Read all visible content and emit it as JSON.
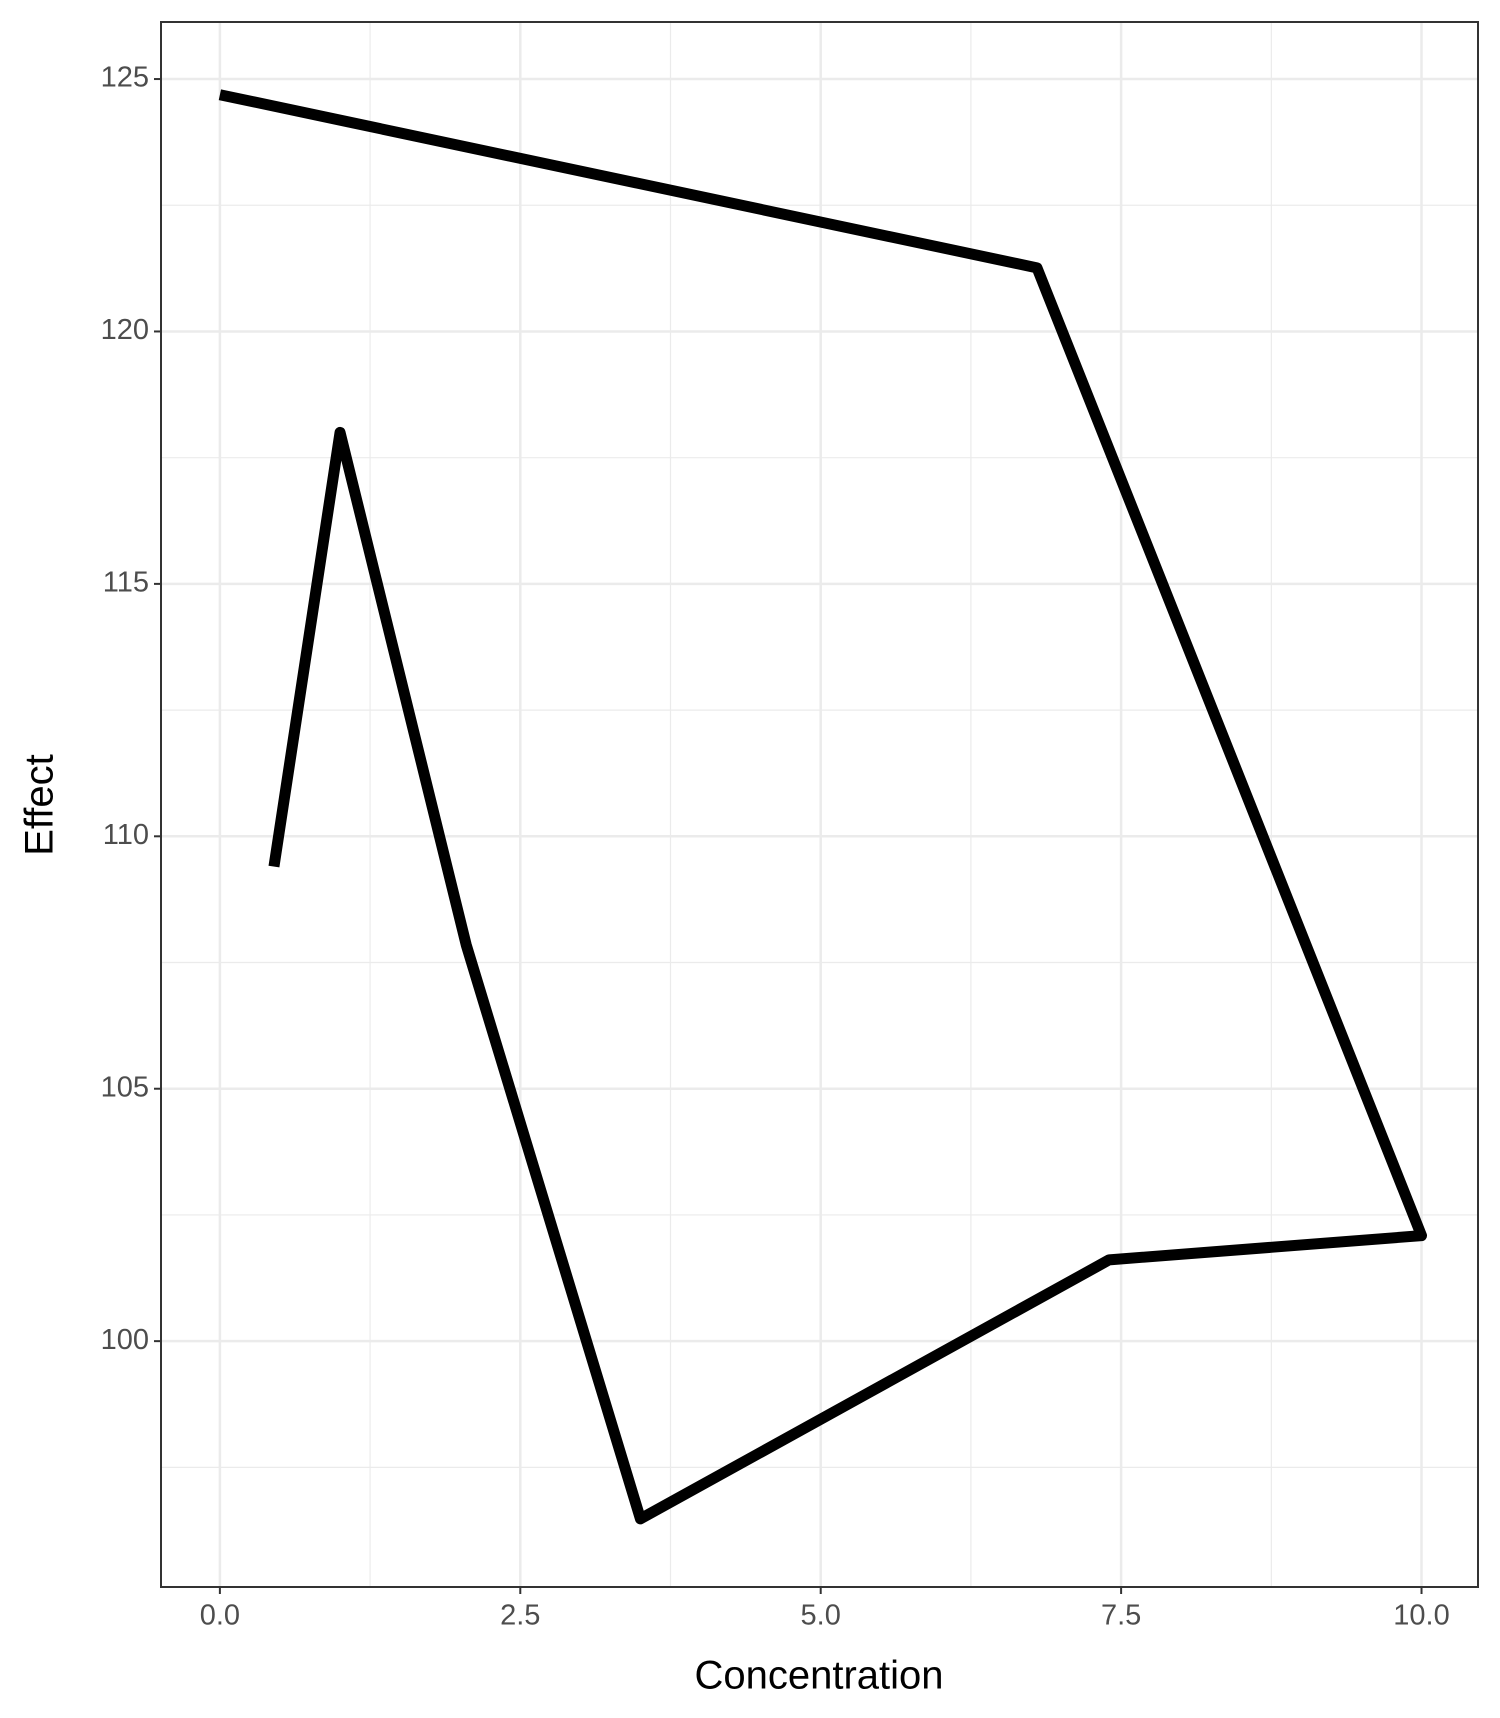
{
  "chart_data": {
    "type": "line",
    "x_label": "Concentration",
    "y_label": "Effect",
    "x": [
      0.45,
      1.0,
      2.05,
      3.5,
      7.4,
      10.0,
      6.8,
      0.0
    ],
    "series": [
      {
        "color": "#000000",
        "values": [
          109.4,
          118.0,
          107.85,
          96.48,
          101.61,
          102.09,
          121.26,
          124.69
        ]
      }
    ],
    "xlim": [
      -0.49,
      10.47
    ],
    "ylim": [
      95.13,
      126.13
    ],
    "xticks": [
      {
        "value": 0,
        "label": "0.0"
      },
      2.5,
      {
        "value": 5,
        "label": "5.0"
      },
      7.5,
      {
        "value": 10,
        "label": "10.0"
      }
    ],
    "yticks": [
      100,
      105,
      110,
      115,
      120,
      125
    ],
    "grid": true
  }
}
